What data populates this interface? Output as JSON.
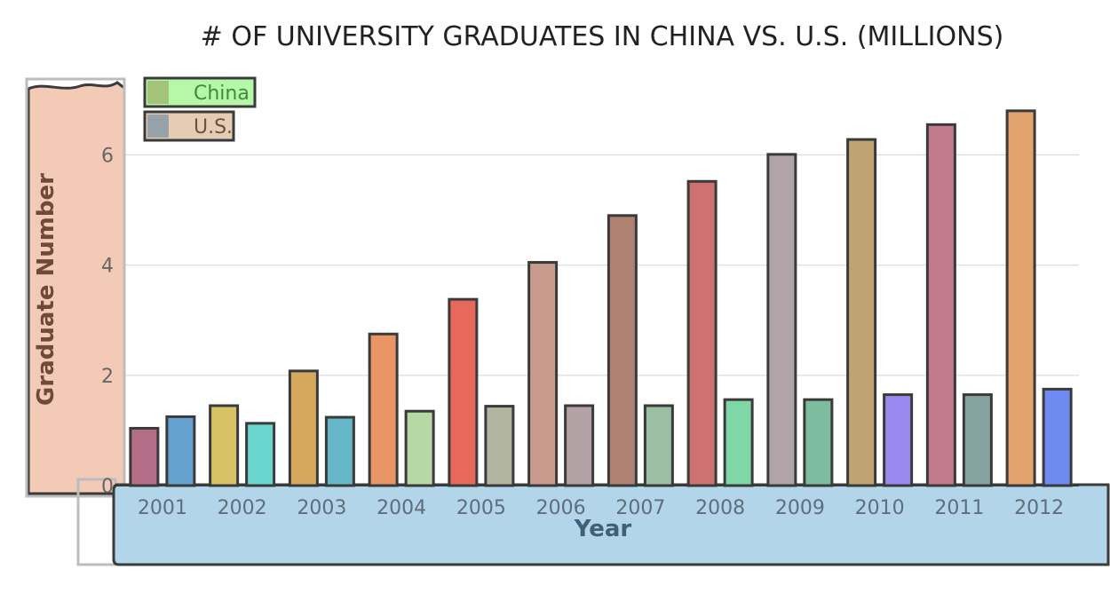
{
  "chart_data": {
    "type": "bar",
    "title": "# OF UNIVERSITY GRADUATES IN CHINA VS. U.S. (MILLIONS)",
    "xlabel": "Year",
    "ylabel": "Graduate Number",
    "categories": [
      "2001",
      "2002",
      "2003",
      "2004",
      "2005",
      "2006",
      "2007",
      "2008",
      "2009",
      "2010",
      "2011",
      "2012"
    ],
    "series": [
      {
        "name": "China",
        "values": [
          1.04,
          1.45,
          2.08,
          2.75,
          3.38,
          4.05,
          4.9,
          5.52,
          6.01,
          6.28,
          6.55,
          6.8
        ]
      },
      {
        "name": "U.S.",
        "values": [
          1.25,
          1.13,
          1.24,
          1.35,
          1.44,
          1.45,
          1.45,
          1.56,
          1.56,
          1.65,
          1.65,
          1.75
        ]
      }
    ],
    "ylim": [
      0,
      7.2
    ],
    "yticks": [
      0,
      2,
      4,
      6
    ],
    "grid": true,
    "legend_position": "top-left",
    "legend_swatch_colors": [
      "#a3c27a",
      "#98a2ab"
    ],
    "legend_fill_colors": [
      "#b7f7a8",
      "#e6ccb4"
    ],
    "bar_colors": [
      [
        "#b46e87",
        "#d6c165",
        "#d6a85c",
        "#e99566",
        "#e8695b",
        "#c99b8e",
        "#ae8173",
        "#cf7171",
        "#b1a4a8",
        "#c0a373",
        "#c27b8d",
        "#e2a46e"
      ],
      [
        "#66a2d0",
        "#6ad5ce",
        "#66b7ca",
        "#b6d8a4",
        "#b2b5a0",
        "#b2a2a6",
        "#9cbfa4",
        "#7fd6a7",
        "#7ebc9f",
        "#9988f0",
        "#85a2a0",
        "#6f8bf2"
      ]
    ],
    "annotation_region_colors": {
      "y_axis": "#f3cab6",
      "x_axis": "#b3d5e9"
    }
  }
}
